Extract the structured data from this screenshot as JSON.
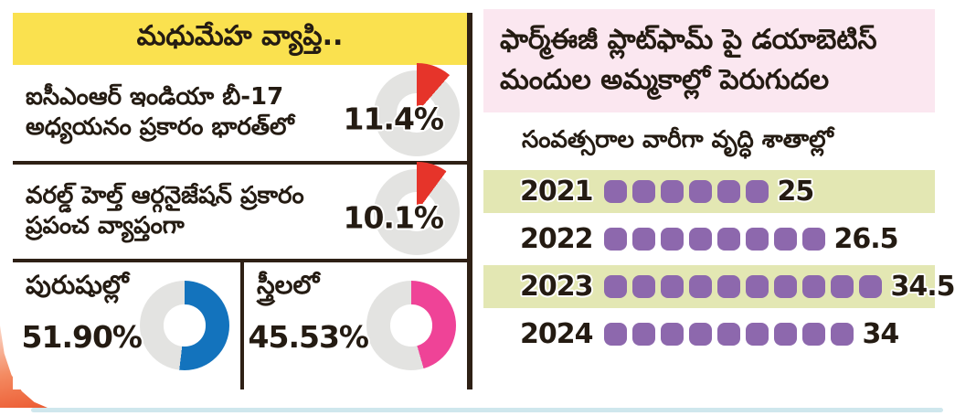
{
  "left_panel": {
    "title": "మధుమేహ వ్యాప్తి..",
    "stat_rows": [
      {
        "text": "ఐసీఎంఆర్ ఇండియా బీ-17 అధ్యయనం ప్రకారం భారత్‌లో",
        "value": "11.4%",
        "percent": 11.4,
        "color": "#e6342a"
      },
      {
        "text": "వరల్డ్ హెల్త్ ఆర్గనైజేషన్ ప్రకారం ప్రపంచ వ్యాప్తంగా",
        "value": "10.1%",
        "percent": 10.1,
        "color": "#e6342a"
      }
    ],
    "gender_cells": [
      {
        "label": "పురుషుల్లో",
        "value": "51.90%",
        "percent": 51.9,
        "color": "#1373bd"
      },
      {
        "label": "స్త్రీలలో",
        "value": "45.53%",
        "percent": 45.53,
        "color": "#ef4397"
      }
    ],
    "ring_color": "#e3e3e1",
    "header_bg": "#fae14f"
  },
  "right_panel": {
    "title": "ఫార్మ్ఈజీ ప్లాట్‌ఫామ్ పై డయాబెటిస్ మందుల అమ్మకాల్లో పెరుగుదల",
    "subtitle": "సంవత్సరాల వారీగా వృద్ధి శాతాల్లో",
    "rows": [
      {
        "year": "2021",
        "dots": 6,
        "value": "25"
      },
      {
        "year": "2022",
        "dots": 8,
        "value": "26.5"
      },
      {
        "year": "2023",
        "dots": 10,
        "value": "34.5"
      },
      {
        "year": "2024",
        "dots": 9,
        "value": "34"
      }
    ],
    "dot_color": "#8d68ad",
    "highlight_color": "#e3e7b3",
    "header_bg": "#fbe7f0"
  },
  "chart_data": [
    {
      "type": "pie",
      "title": "మధుమేహ వ్యాప్తి..",
      "items": [
        {
          "label": "ఐసీఎంఆర్ ఇండియా బీ-17 అధ్యయనం ప్రకారం భారత్‌లో",
          "value": 11.4,
          "color": "#e6342a"
        },
        {
          "label": "వరల్డ్ హెల్త్ ఆర్గనైజేషన్ ప్రకారం ప్రపంచ వ్యాప్తంగా",
          "value": 10.1,
          "color": "#e6342a"
        },
        {
          "label": "పురుషుల్లో",
          "value": 51.9,
          "color": "#1373bd"
        },
        {
          "label": "స్త్రీలలో",
          "value": 45.53,
          "color": "#ef4397"
        }
      ]
    },
    {
      "type": "bar",
      "title": "ఫార్మ్ఈజీ ప్లాట్‌ఫామ్ పై డయాబెటిస్ మందుల అమ్మకాల్లో పెరుగుదల",
      "subtitle": "సంవత్సరాల వారీగా వృద్ధి శాతాల్లో",
      "categories": [
        "2021",
        "2022",
        "2023",
        "2024"
      ],
      "values": [
        25,
        26.5,
        34.5,
        34
      ],
      "dot_counts": [
        6,
        8,
        10,
        9
      ],
      "dot_color": "#8d68ad",
      "xlabel": "",
      "ylabel": "",
      "legend": false
    }
  ]
}
